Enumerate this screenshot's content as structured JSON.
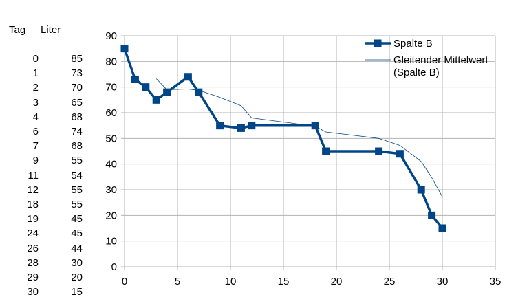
{
  "table": {
    "header_tag": "Tag",
    "header_liter": "Liter",
    "rows": [
      {
        "tag": "0",
        "liter": "85"
      },
      {
        "tag": "1",
        "liter": "73"
      },
      {
        "tag": "2",
        "liter": "70"
      },
      {
        "tag": "3",
        "liter": "65"
      },
      {
        "tag": "4",
        "liter": "68"
      },
      {
        "tag": "6",
        "liter": "74"
      },
      {
        "tag": "7",
        "liter": "68"
      },
      {
        "tag": "9",
        "liter": "55"
      },
      {
        "tag": "11",
        "liter": "54"
      },
      {
        "tag": "12",
        "liter": "55"
      },
      {
        "tag": "18",
        "liter": "55"
      },
      {
        "tag": "19",
        "liter": "45"
      },
      {
        "tag": "24",
        "liter": "45"
      },
      {
        "tag": "26",
        "liter": "44"
      },
      {
        "tag": "28",
        "liter": "30"
      },
      {
        "tag": "29",
        "liter": "20"
      },
      {
        "tag": "30",
        "liter": "15"
      }
    ]
  },
  "chart_data": {
    "type": "line",
    "title": "",
    "xlabel": "",
    "ylabel": "",
    "xlim": [
      0,
      35
    ],
    "ylim": [
      0,
      90
    ],
    "x_ticks": [
      0,
      5,
      10,
      15,
      20,
      25,
      30,
      35
    ],
    "y_ticks": [
      0,
      10,
      20,
      30,
      40,
      50,
      60,
      70,
      80,
      90
    ],
    "grid": true,
    "legend_position": "top-right",
    "series": [
      {
        "name": "Spalte B",
        "color": "#004586",
        "marker": "square",
        "x": [
          0,
          1,
          2,
          3,
          4,
          6,
          7,
          9,
          11,
          12,
          18,
          19,
          24,
          26,
          28,
          29,
          30
        ],
        "y": [
          85,
          73,
          70,
          65,
          68,
          74,
          68,
          55,
          54,
          55,
          55,
          45,
          45,
          44,
          30,
          20,
          15
        ]
      },
      {
        "name": "Gleitender Mittelwert (Spalte B)",
        "legend_lines": [
          "Gleitender Mittelwert",
          "(Spalte B)"
        ],
        "color": "#004586",
        "marker": "none",
        "x": [
          3,
          4,
          6,
          7,
          9,
          11,
          12,
          18,
          19,
          24,
          26,
          28,
          29,
          30
        ],
        "y": [
          73.25,
          69,
          69.25,
          68.75,
          66,
          62.75,
          58,
          54.75,
          52.5,
          50,
          47.25,
          41,
          34.75,
          27.25
        ]
      }
    ]
  }
}
